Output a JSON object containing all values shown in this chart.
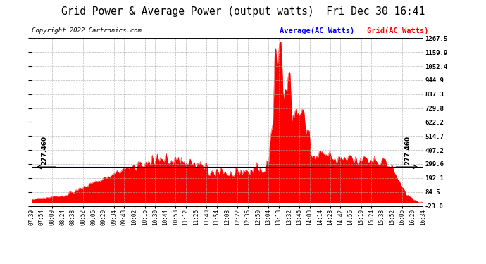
{
  "title": "Grid Power & Average Power (output watts)  Fri Dec 30 16:41",
  "copyright": "Copyright 2022 Cartronics.com",
  "legend_avg": "Average(AC Watts)",
  "legend_grid": "Grid(AC Watts)",
  "legend_avg_color": "#0000ff",
  "legend_grid_color": "#ff0000",
  "y_right_ticks": [
    1267.5,
    1159.9,
    1052.4,
    944.9,
    837.3,
    729.8,
    622.2,
    514.7,
    407.2,
    299.6,
    192.1,
    84.5,
    -23.0
  ],
  "y_min": -23.0,
  "y_max": 1267.5,
  "hline_value": 277.46,
  "hline_label": "277.460",
  "background_color": "#ffffff",
  "plot_bg_color": "#ffffff",
  "grid_color": "#aaaaaa",
  "fill_color": "#ff0000",
  "avg_line_color": "#0000ff",
  "title_fontsize": 11,
  "copyright_fontsize": 7,
  "x_tick_labels": [
    "07:39",
    "07:54",
    "08:09",
    "08:24",
    "08:38",
    "08:52",
    "09:06",
    "09:20",
    "09:34",
    "09:48",
    "10:02",
    "10:16",
    "10:30",
    "10:44",
    "10:58",
    "11:12",
    "11:26",
    "11:40",
    "11:54",
    "12:08",
    "12:22",
    "12:36",
    "12:50",
    "13:04",
    "13:18",
    "13:32",
    "13:46",
    "14:00",
    "14:14",
    "14:28",
    "14:42",
    "14:56",
    "15:10",
    "15:24",
    "15:38",
    "15:52",
    "16:06",
    "16:20",
    "16:34"
  ]
}
